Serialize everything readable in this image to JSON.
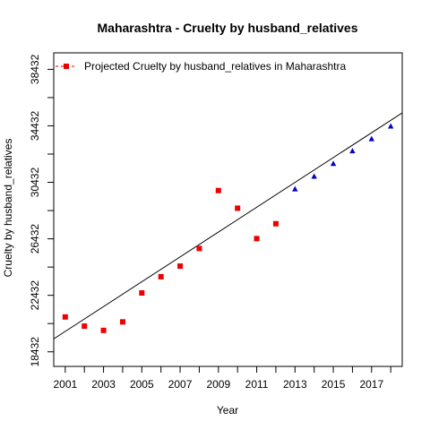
{
  "chart_data": {
    "type": "scatter",
    "title": "Maharashtra  -  Cruelty by husband_relatives",
    "xlabel": "Year",
    "ylabel": "Cruelty by husband_relatives",
    "xlim": [
      2000.4,
      2018.6
    ],
    "ylim": [
      17400,
      39600
    ],
    "x_ticks": [
      2001,
      2003,
      2005,
      2007,
      2009,
      2011,
      2013,
      2015,
      2017
    ],
    "x_minor_ticks": [
      2002,
      2004,
      2006,
      2008,
      2010,
      2012,
      2014,
      2016,
      2018
    ],
    "y_ticks": [
      18432,
      22432,
      26432,
      30432,
      34432,
      38432
    ],
    "y_minor_ticks": [
      20432,
      24432,
      28432,
      32432,
      36432
    ],
    "legend": {
      "position": "top-left",
      "label": "Projected  Cruelty by husband_relatives  in  Maharashtra"
    },
    "series": [
      {
        "marker": "square",
        "color": "#ee0000",
        "x": [
          2001,
          2002,
          2003,
          2004,
          2005,
          2006,
          2007,
          2008,
          2009,
          2010,
          2011,
          2012
        ],
        "y": [
          20900,
          20250,
          19950,
          20550,
          22600,
          23750,
          24500,
          25750,
          29850,
          28600,
          26450,
          27500
        ]
      },
      {
        "marker": "triangle",
        "color": "#0000cc",
        "x": [
          2013,
          2014,
          2015,
          2016,
          2017,
          2018
        ],
        "y": [
          29950,
          30850,
          31750,
          32650,
          33500,
          34400
        ]
      }
    ],
    "trend_line": {
      "x": [
        2000.4,
        2018.6
      ],
      "y": [
        19350,
        35350
      ],
      "color": "#000000"
    }
  }
}
